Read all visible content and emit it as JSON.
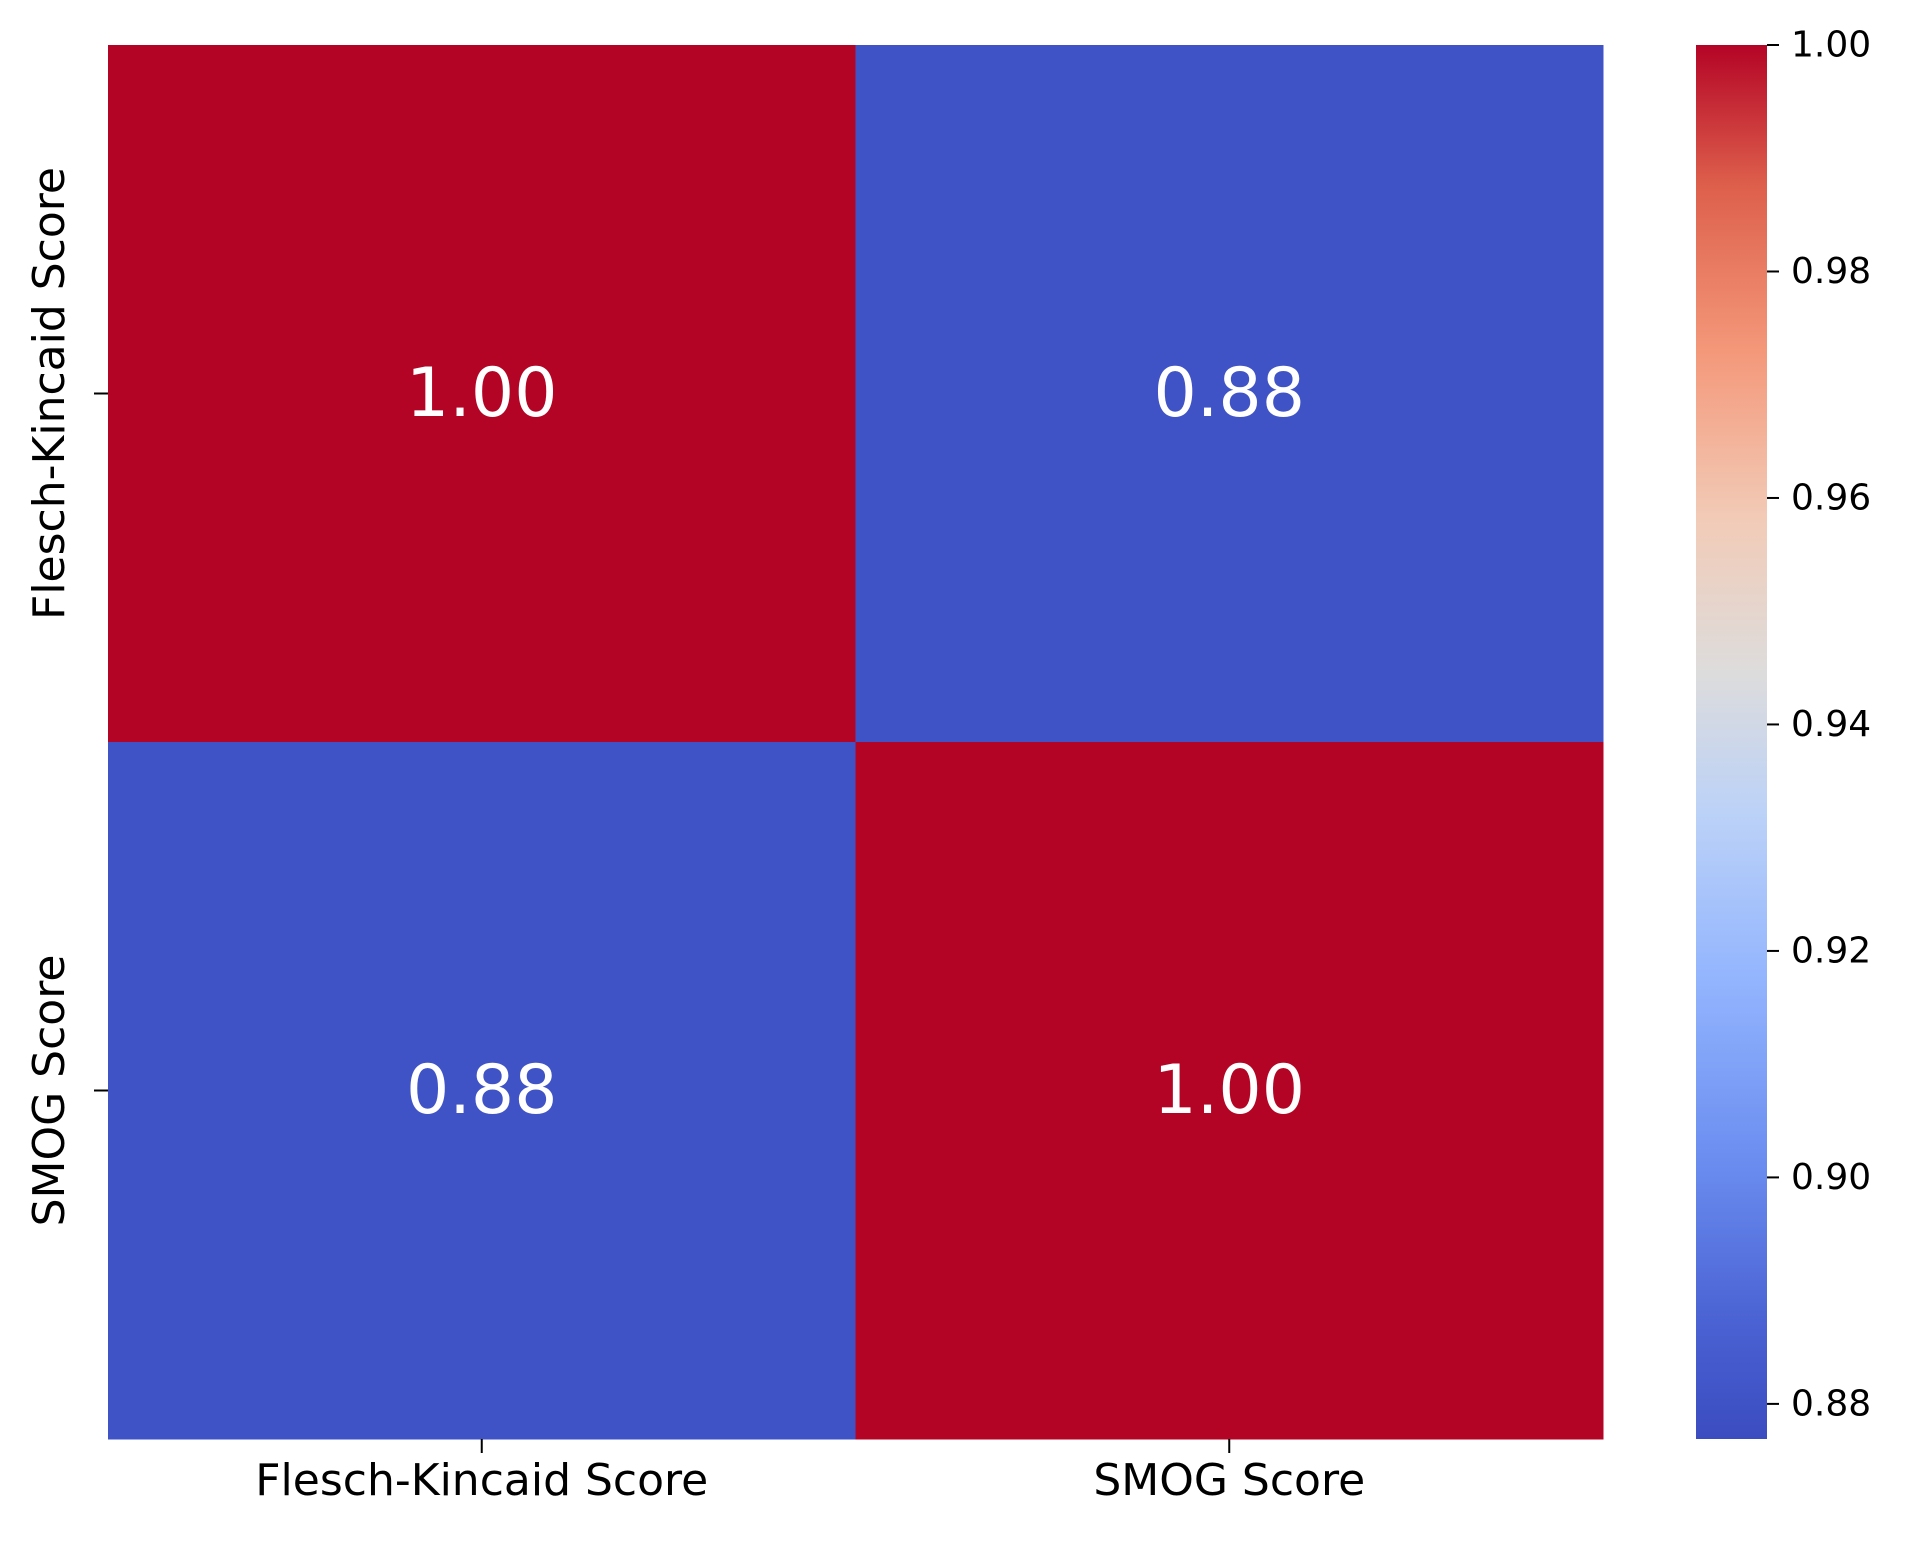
{
  "chart_data": {
    "type": "heatmap",
    "x_categories": [
      "Flesch-Kincaid Score",
      "SMOG Score"
    ],
    "y_categories": [
      "Flesch-Kincaid Score",
      "SMOG Score"
    ],
    "values": [
      [
        1.0,
        0.88
      ],
      [
        0.88,
        1.0
      ]
    ],
    "cell_labels": [
      [
        "1.00",
        "0.88"
      ],
      [
        "0.88",
        "1.00"
      ]
    ],
    "colormap": "coolwarm",
    "colorbar": {
      "range": [
        0.8769,
        1.0
      ],
      "ticks": [
        0.88,
        0.9,
        0.92,
        0.94,
        0.96,
        0.98,
        1.0
      ],
      "tick_labels": [
        "0.88",
        "0.90",
        "0.92",
        "0.94",
        "0.96",
        "0.98",
        "1.00"
      ]
    },
    "colors": {
      "low": "#3b4cc0",
      "high": "#b40426",
      "annotation_text": "#ffffff",
      "axis": "#000000"
    }
  }
}
